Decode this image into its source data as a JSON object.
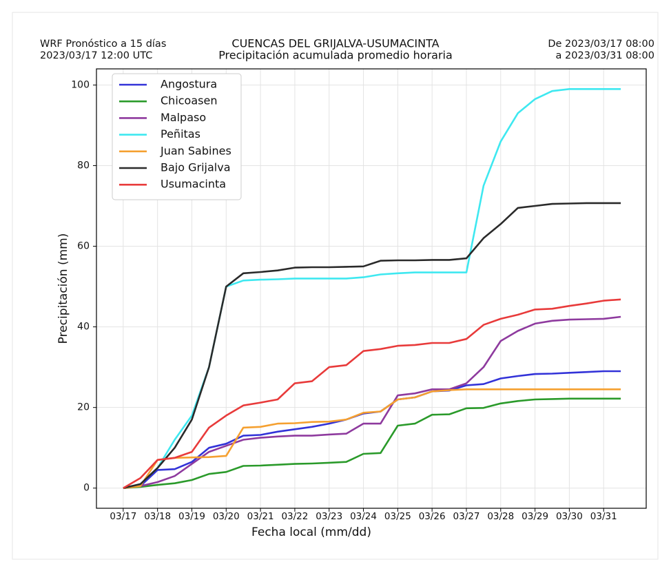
{
  "chart_data": {
    "type": "line",
    "title_left": [
      "WRF Pronóstico a 15 días",
      "2023/03/17 12:00 UTC"
    ],
    "title": [
      "CUENCAS DEL GRIJALVA-USUMACINTA",
      "Precipitación acumulada promedio horaria"
    ],
    "title_right": [
      "De 2023/03/17 08:00",
      "a 2023/03/31 08:00"
    ],
    "xlabel": "Fecha local (mm/dd)",
    "ylabel": "Precipitación (mm)",
    "x": [
      0,
      0.5,
      1,
      1.5,
      2,
      2.5,
      3,
      3.5,
      4,
      4.5,
      5,
      5.5,
      6,
      6.5,
      7,
      7.5,
      8,
      8.5,
      9,
      9.5,
      10,
      10.5,
      11,
      11.5,
      12,
      12.5,
      13,
      13.5,
      14,
      14.5
    ],
    "xlim": [
      -0.78,
      15.24
    ],
    "xticks": [
      {
        "value": 0,
        "label": "03/17"
      },
      {
        "value": 1,
        "label": "03/18"
      },
      {
        "value": 2,
        "label": "03/19"
      },
      {
        "value": 3,
        "label": "03/20"
      },
      {
        "value": 4,
        "label": "03/21"
      },
      {
        "value": 5,
        "label": "03/22"
      },
      {
        "value": 6,
        "label": "03/23"
      },
      {
        "value": 7,
        "label": "03/24"
      },
      {
        "value": 8,
        "label": "03/25"
      },
      {
        "value": 9,
        "label": "03/26"
      },
      {
        "value": 10,
        "label": "03/27"
      },
      {
        "value": 11,
        "label": "03/28"
      },
      {
        "value": 12,
        "label": "03/29"
      },
      {
        "value": 13,
        "label": "03/30"
      },
      {
        "value": 14,
        "label": "03/31"
      }
    ],
    "ylim": [
      -5,
      104
    ],
    "yticks": [
      0,
      20,
      40,
      60,
      80,
      100
    ],
    "grid": true,
    "legend": "upper left",
    "series": [
      {
        "name": "Angostura",
        "color": "#3232d8",
        "values": [
          0,
          0.5,
          4.5,
          4.7,
          6.5,
          10,
          11,
          13,
          13.2,
          14,
          14.6,
          15.2,
          16,
          17,
          18.5,
          19,
          22,
          22.5,
          24,
          24.2,
          25.5,
          25.8,
          27.2,
          27.8,
          28.3,
          28.4,
          28.6,
          28.8,
          29,
          29
        ]
      },
      {
        "name": "Chicoasen",
        "color": "#2a9a2a",
        "values": [
          0,
          0.3,
          0.8,
          1.2,
          2,
          3.5,
          4,
          5.5,
          5.6,
          5.8,
          6,
          6.1,
          6.3,
          6.5,
          8.5,
          8.7,
          15.5,
          16,
          18.2,
          18.3,
          19.8,
          19.9,
          21,
          21.6,
          22,
          22.1,
          22.2,
          22.2,
          22.2,
          22.2
        ]
      },
      {
        "name": "Malpaso",
        "color": "#8e3a9e",
        "values": [
          0,
          0.5,
          1.5,
          3,
          6,
          9,
          10.5,
          12,
          12.5,
          12.8,
          13,
          13,
          13.3,
          13.5,
          16,
          16,
          23,
          23.5,
          24.5,
          24.5,
          26,
          30,
          36.5,
          39,
          40.8,
          41.5,
          41.8,
          41.9,
          42,
          42.5
        ]
      },
      {
        "name": "Peñitas",
        "color": "#3ee8f0",
        "values": [
          0,
          1,
          5,
          12,
          18,
          30,
          50,
          51.5,
          51.7,
          51.8,
          52,
          52,
          52,
          52,
          52.3,
          53,
          53.3,
          53.5,
          53.5,
          53.5,
          53.5,
          75,
          86,
          93,
          96.5,
          98.5,
          99,
          99,
          99,
          99
        ]
      },
      {
        "name": "Juan Sabines",
        "color": "#f5a030",
        "values": [
          0,
          0.5,
          7,
          7.5,
          7.6,
          7.7,
          8,
          15,
          15.2,
          16,
          16.1,
          16.4,
          16.5,
          17,
          18.7,
          19,
          22,
          22.5,
          24,
          24.3,
          24.5,
          24.5,
          24.5,
          24.5,
          24.5,
          24.5,
          24.5,
          24.5,
          24.5,
          24.5
        ]
      },
      {
        "name": "Bajo Grijalva",
        "color": "#2a2a2a",
        "values": [
          0,
          1,
          5,
          10,
          17,
          30,
          50,
          53.3,
          53.6,
          54,
          54.7,
          54.8,
          54.8,
          54.9,
          55,
          56.4,
          56.5,
          56.5,
          56.6,
          56.6,
          57,
          62,
          65.5,
          69.5,
          70,
          70.5,
          70.6,
          70.7,
          70.7,
          70.7
        ]
      },
      {
        "name": "Usumacinta",
        "color": "#e83a3a",
        "values": [
          0,
          2.5,
          7,
          7.5,
          9,
          15,
          18,
          20.5,
          21.2,
          22,
          26,
          26.5,
          30,
          30.5,
          34,
          34.5,
          35.3,
          35.5,
          36,
          36,
          37,
          40.5,
          42,
          43,
          44.3,
          44.5,
          45.2,
          45.8,
          46.5,
          46.8
        ]
      }
    ]
  }
}
